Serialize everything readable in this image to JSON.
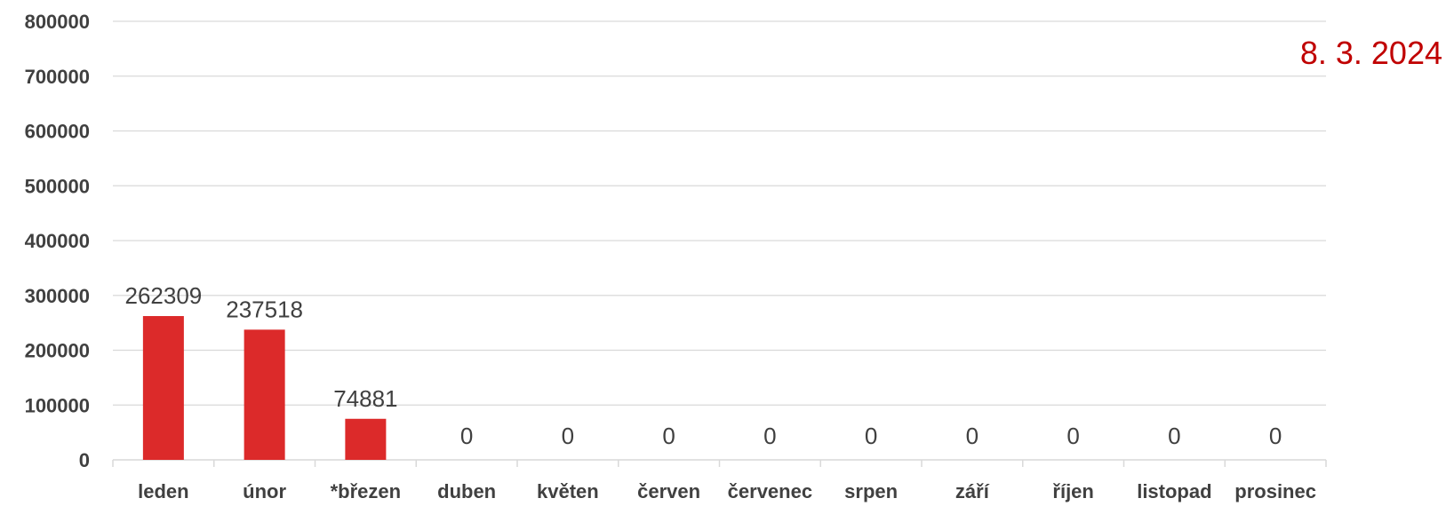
{
  "annotation": "8. 3. 2024",
  "colors": {
    "bar": "#dc2a2a",
    "annotation": "#c00000",
    "grid": "#d9d9d9",
    "text": "#404040"
  },
  "chart_data": {
    "type": "bar",
    "title": "",
    "xlabel": "",
    "ylabel": "",
    "categories": [
      "leden",
      "únor",
      "*březen",
      "duben",
      "květen",
      "červen",
      "červenec",
      "srpen",
      "září",
      "říjen",
      "listopad",
      "prosinec"
    ],
    "values": [
      262309,
      237518,
      74881,
      0,
      0,
      0,
      0,
      0,
      0,
      0,
      0,
      0
    ],
    "data_labels": [
      "262309",
      "237518",
      "74881",
      "0",
      "0",
      "0",
      "0",
      "0",
      "0",
      "0",
      "0",
      "0"
    ],
    "ylim": [
      0,
      800000
    ],
    "yticks": [
      0,
      100000,
      200000,
      300000,
      400000,
      500000,
      600000,
      700000,
      800000
    ],
    "ytick_labels": [
      "0",
      "100000",
      "200000",
      "300000",
      "400000",
      "500000",
      "600000",
      "700000",
      "800000"
    ],
    "grid": true,
    "legend": "none"
  }
}
